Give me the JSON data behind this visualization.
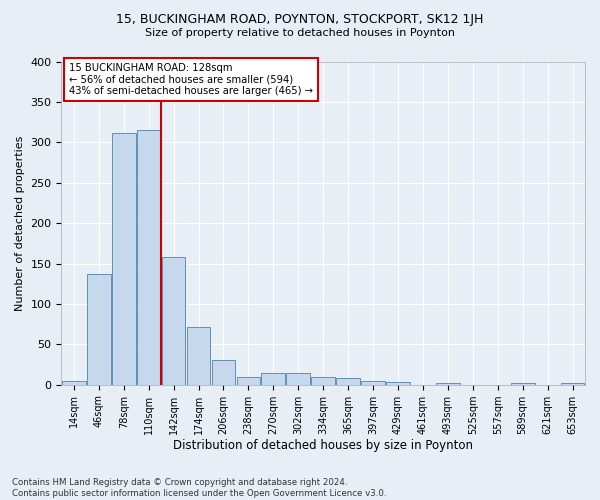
{
  "title": "15, BUCKINGHAM ROAD, POYNTON, STOCKPORT, SK12 1JH",
  "subtitle": "Size of property relative to detached houses in Poynton",
  "xlabel": "Distribution of detached houses by size in Poynton",
  "ylabel": "Number of detached properties",
  "categories": [
    "14sqm",
    "46sqm",
    "78sqm",
    "110sqm",
    "142sqm",
    "174sqm",
    "206sqm",
    "238sqm",
    "270sqm",
    "302sqm",
    "334sqm",
    "365sqm",
    "397sqm",
    "429sqm",
    "461sqm",
    "493sqm",
    "525sqm",
    "557sqm",
    "589sqm",
    "621sqm",
    "653sqm"
  ],
  "values": [
    4,
    137,
    312,
    315,
    158,
    71,
    31,
    10,
    14,
    14,
    10,
    8,
    5,
    3,
    0,
    2,
    0,
    0,
    2,
    0,
    2
  ],
  "bar_color": "#c6d9ec",
  "bar_edge_color": "#6090b8",
  "annotation_title": "15 BUCKINGHAM ROAD: 128sqm",
  "annotation_line1": "← 56% of detached houses are smaller (594)",
  "annotation_line2": "43% of semi-detached houses are larger (465) →",
  "annotation_box_color": "#ffffff",
  "annotation_border_color": "#cc0000",
  "property_line_color": "#cc0000",
  "property_line_x": 3.5,
  "footer_line1": "Contains HM Land Registry data © Crown copyright and database right 2024.",
  "footer_line2": "Contains public sector information licensed under the Open Government Licence v3.0.",
  "ylim": [
    0,
    400
  ],
  "bg_color": "#e8eef5",
  "grid_color": "#ffffff"
}
